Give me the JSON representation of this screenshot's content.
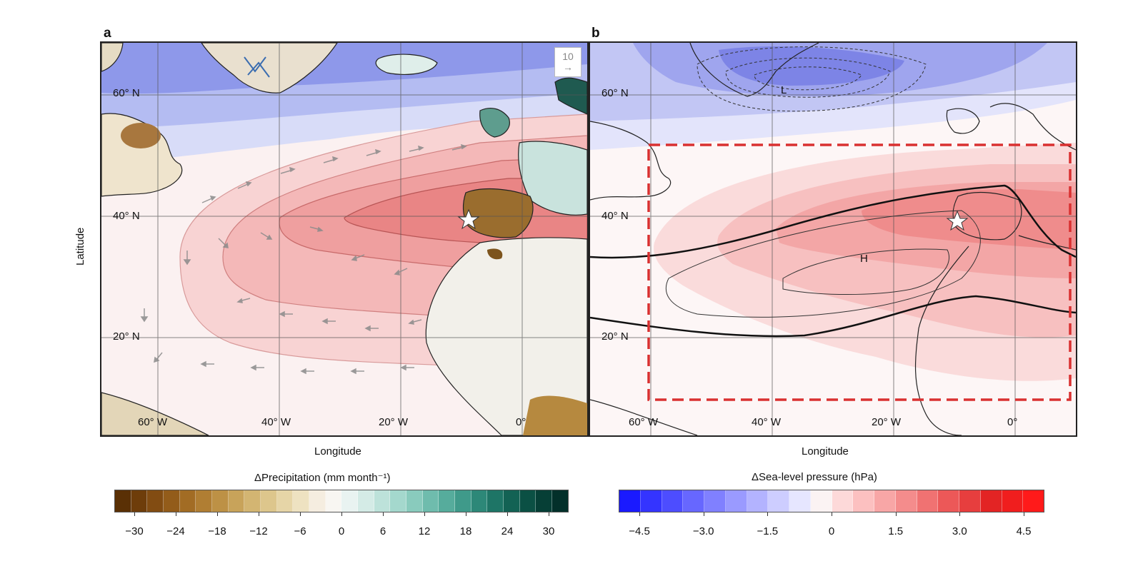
{
  "panels": {
    "a": {
      "letter": "a",
      "lat_labels": [
        "60° N",
        "40° N",
        "20° N"
      ],
      "lon_labels": [
        "60° W",
        "40° W",
        "20° W",
        "0°"
      ],
      "xlabel": "Longitude",
      "ylabel": "Latitude",
      "ref_vector_label": "10"
    },
    "b": {
      "letter": "b",
      "lat_labels": [
        "60° N",
        "40° N",
        "20° N"
      ],
      "lon_labels": [
        "60° W",
        "40° W",
        "20° W",
        "0°"
      ],
      "xlabel": "Longitude",
      "low_label": "L",
      "high_label": "H"
    }
  },
  "colorbars": {
    "precip": {
      "title": "ΔPrecipitation (mm month⁻¹)",
      "ticks": [
        "−30",
        "−24",
        "−18",
        "−12",
        "−6",
        "0",
        "6",
        "12",
        "18",
        "24",
        "30"
      ],
      "colors": [
        "#5a3005",
        "#6e3d0a",
        "#824c12",
        "#935c1a",
        "#a26c24",
        "#b07e33",
        "#bd9145",
        "#c8a35a",
        "#d3b572",
        "#ddc68c",
        "#e6d5a7",
        "#eee2c1",
        "#f5ede0",
        "#f8f6f2",
        "#e9f3f1",
        "#d4ebe6",
        "#bde2da",
        "#a4d8cd",
        "#89cbbd",
        "#6fbcad",
        "#56ac9c",
        "#3f9a8a",
        "#2d8878",
        "#1e7566",
        "#136254",
        "#0b5044",
        "#063f36",
        "#03302a"
      ]
    },
    "slp": {
      "title": "ΔSea-level pressure (hPa)",
      "ticks": [
        "−4.5",
        "−3.0",
        "−1.5",
        "0",
        "1.5",
        "3.0",
        "4.5"
      ],
      "colors": [
        "#1a1aff",
        "#3434ff",
        "#4d4dff",
        "#6767ff",
        "#8080ff",
        "#9a9aff",
        "#b3b3ff",
        "#cdcdff",
        "#e6e6ff",
        "#fbf3f3",
        "#fdd9d9",
        "#fcc0c0",
        "#f8a6a6",
        "#f48c8c",
        "#f07272",
        "#ec5858",
        "#e73e3e",
        "#e32424",
        "#f01e1e",
        "#ff1a1a"
      ]
    }
  }
}
